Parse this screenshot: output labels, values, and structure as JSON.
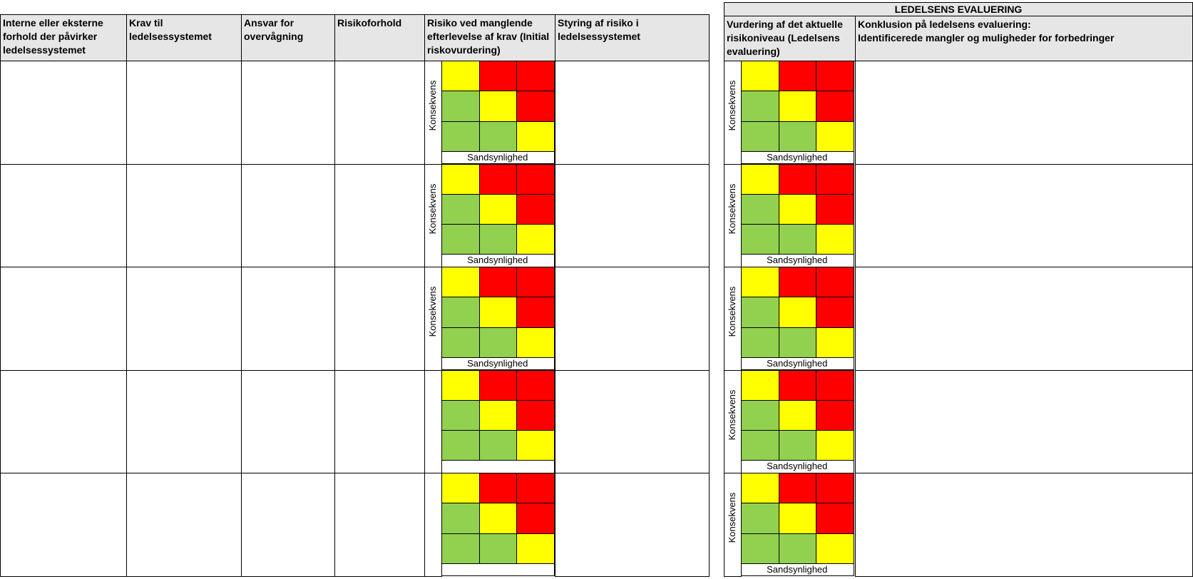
{
  "left_table": {
    "headers": [
      "Interne eller eksterne forhold der påvirker ledelsessystemet",
      "Krav til ledelsessystemet",
      "Ansvar for overvågning",
      "Risikoforhold",
      "Risiko ved manglende efterlevelse af krav (Initial riskovurdering)",
      "Styring af risiko i ledelsessystemet"
    ]
  },
  "right_table": {
    "title": "LEDELSENS EVALUERING",
    "headers": [
      "Vurdering af det aktuelle risikoniveau (Ledelsens evaluering)",
      "Konklusion på ledelsens evaluering:\nIdentificerede mangler og muligheder for forbedringer"
    ]
  },
  "matrix": {
    "y_axis_label": "Konsekvens",
    "x_axis_label": "Sandsynlighed",
    "grid": [
      [
        "y",
        "r",
        "r"
      ],
      [
        "g",
        "y",
        "r"
      ],
      [
        "g",
        "g",
        "y"
      ]
    ],
    "colors": {
      "g": "#92d050",
      "y": "#ffff00",
      "r": "#ff0000"
    }
  },
  "rows": [
    {
      "left_labels": true,
      "right_labels": true
    },
    {
      "left_labels": true,
      "right_labels": true
    },
    {
      "left_labels": true,
      "right_labels": true
    },
    {
      "left_labels": false,
      "right_labels": true
    },
    {
      "left_labels": false,
      "right_labels": true
    }
  ]
}
